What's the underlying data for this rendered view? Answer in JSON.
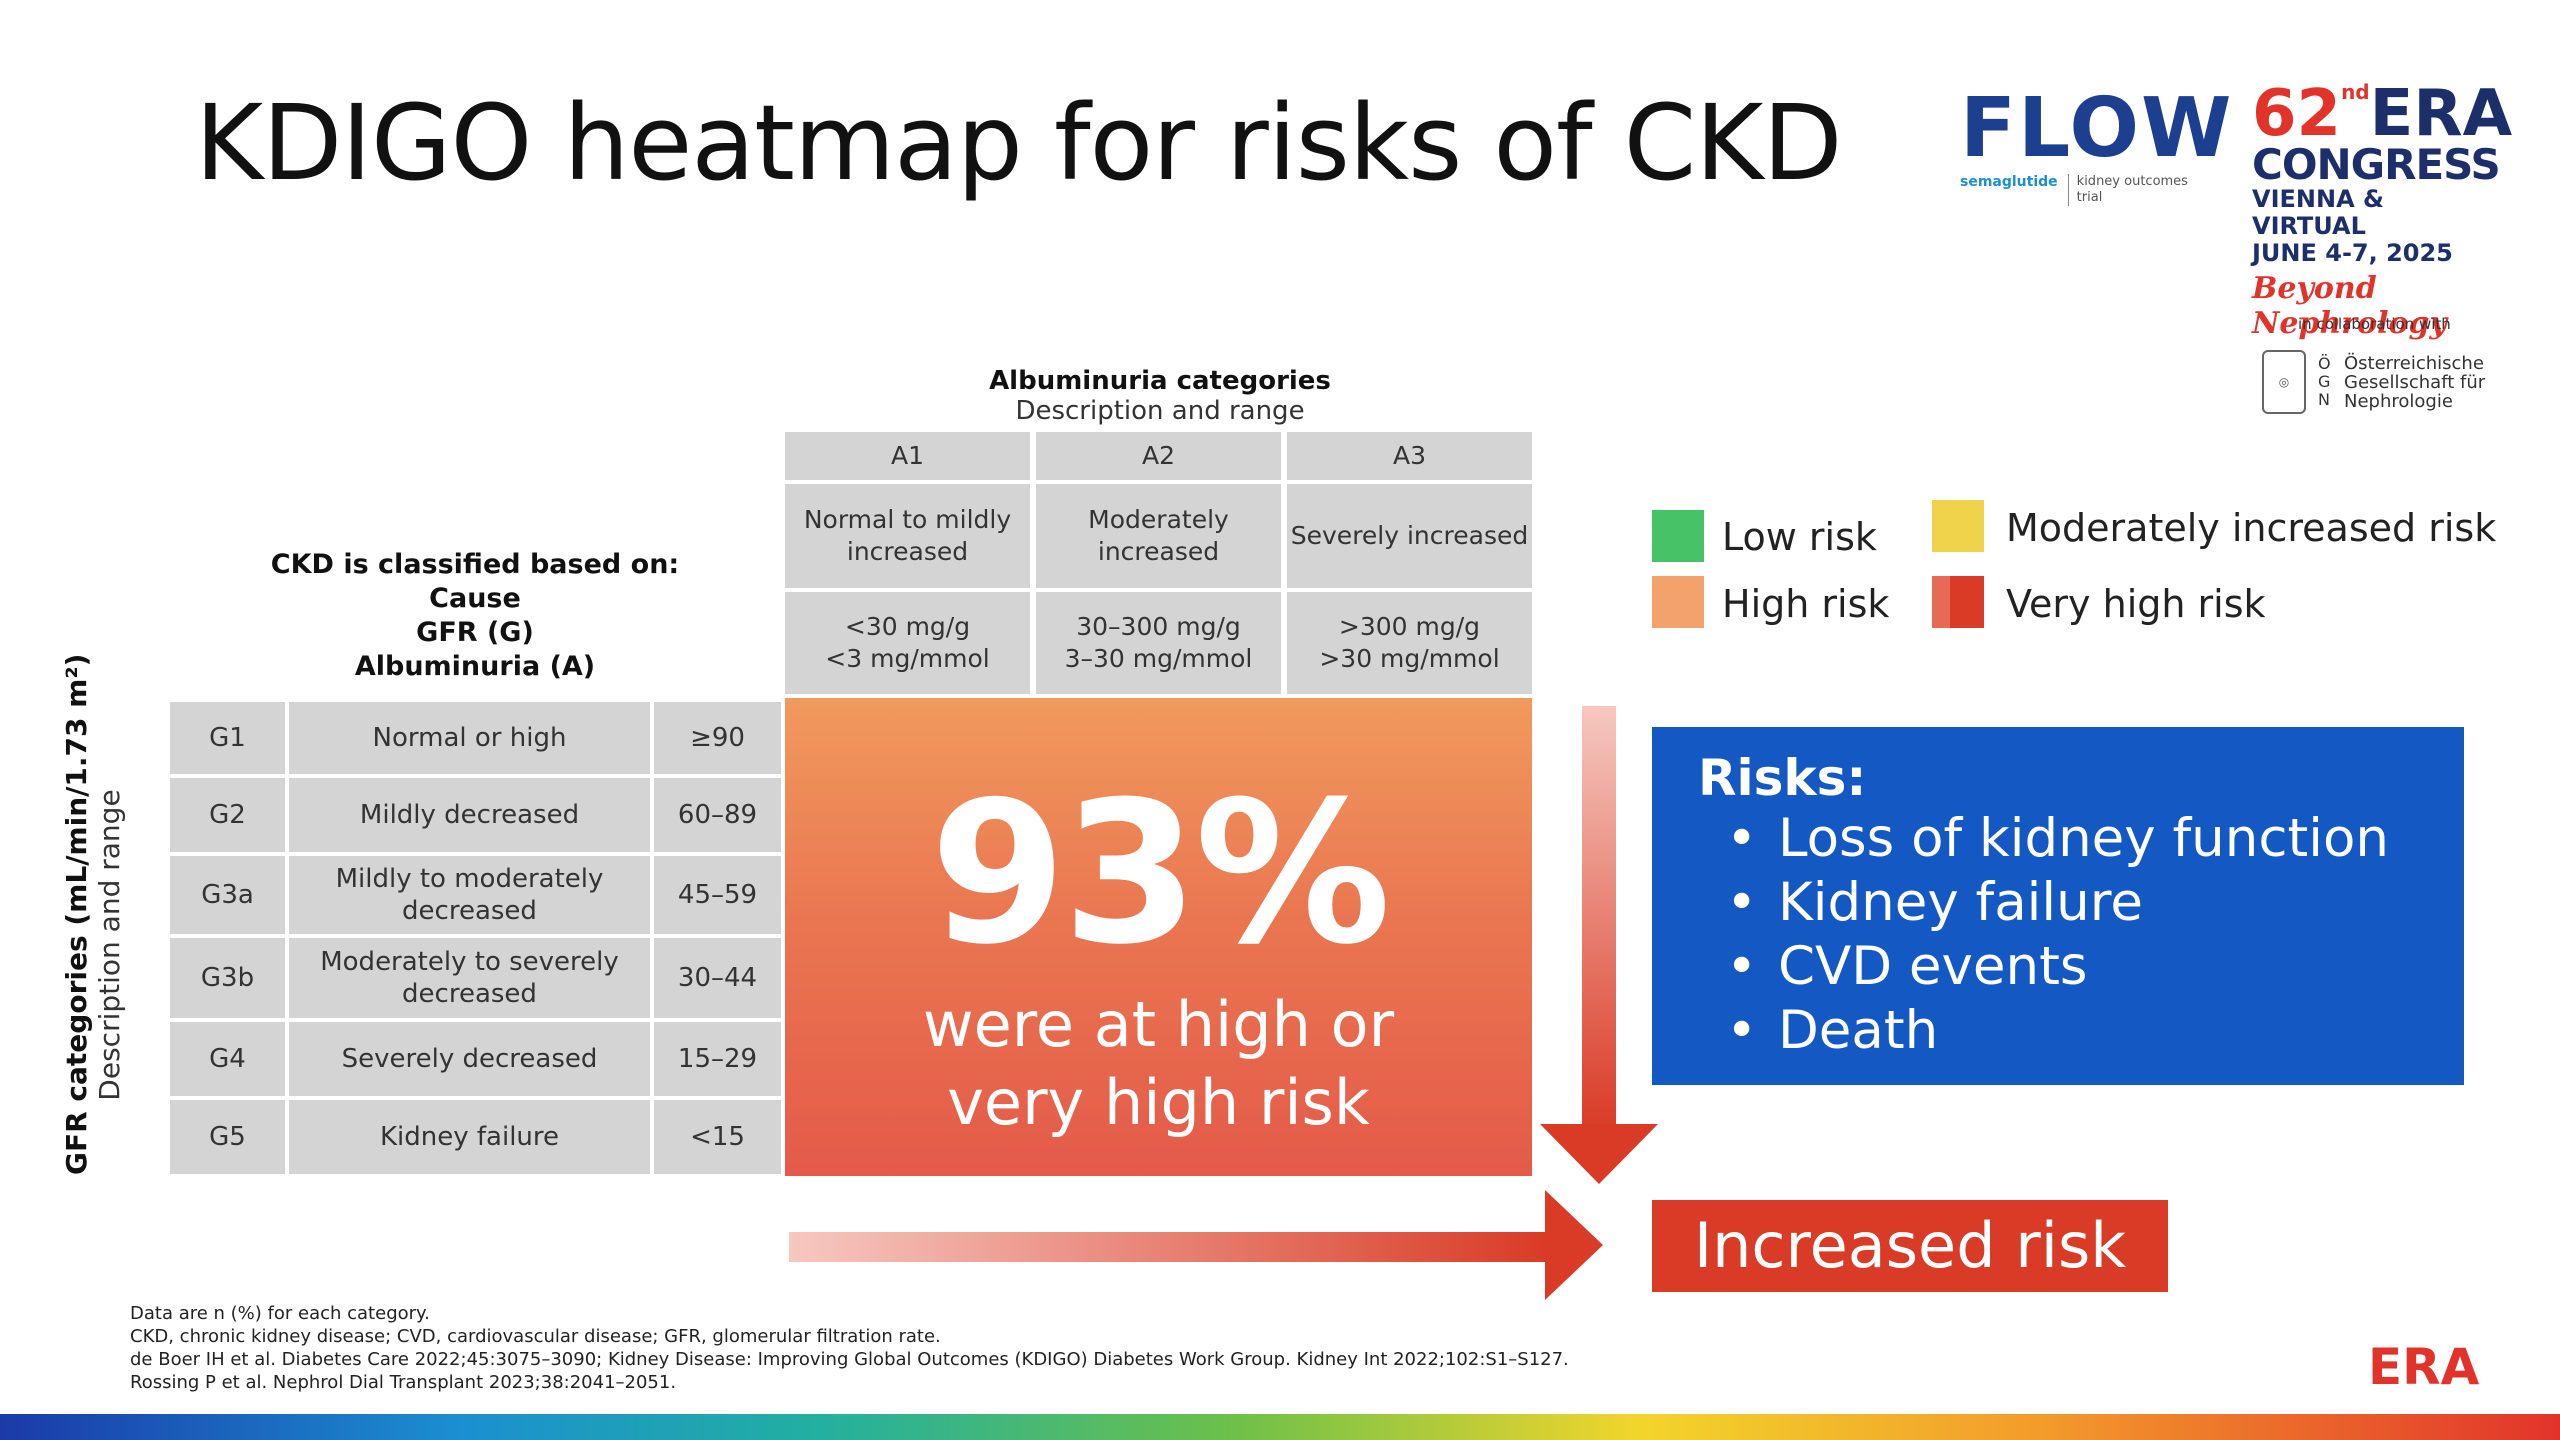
{
  "title": "KDIGO heatmap for risks of CKD",
  "logos": {
    "flow_word": "FLOW",
    "flow_sub1": "semaglutide",
    "flow_sub2": "kidney outcomes trial",
    "era_number": "62",
    "era_sup": "nd",
    "era_word": "ERA",
    "era_congress": "CONGRESS",
    "era_city": "VIENNA & VIRTUAL",
    "era_dates": "JUNE 4-7, 2025",
    "era_tagline": "Beyond Nephrology",
    "collab": "in collaboration with",
    "ogn_letters": "Ö G N",
    "ogn_text": "Österreichische Gesellschaft für Nephrologie",
    "era_small": "ERA"
  },
  "albuminuria": {
    "title": "Albuminuria categories",
    "subtitle": "Description and range",
    "cols": [
      {
        "code": "A1",
        "desc": "Normal to mildly increased",
        "range1": "<30 mg/g",
        "range2": "<3 mg/mmol"
      },
      {
        "code": "A2",
        "desc": "Moderately increased",
        "range1": "30–300 mg/g",
        "range2": "3–30 mg/mmol"
      },
      {
        "code": "A3",
        "desc": "Severely increased",
        "range1": ">300 mg/g",
        "range2": ">30 mg/mmol"
      }
    ]
  },
  "classified": {
    "l1": "CKD is classified based on:",
    "l2": "Cause",
    "l3": "GFR (G)",
    "l4": "Albuminuria (A)"
  },
  "gfr": {
    "label": "GFR categories (mL/min/1.73 m²)",
    "sublabel": "Description and range",
    "rows": [
      {
        "code": "G1",
        "desc": "Normal or high",
        "range": "≥90"
      },
      {
        "code": "G2",
        "desc": "Mildly decreased",
        "range": "60–89"
      },
      {
        "code": "G3a",
        "desc": "Mildly to moderately decreased",
        "range": "45–59"
      },
      {
        "code": "G3b",
        "desc": "Moderately to severely decreased",
        "range": "30–44"
      },
      {
        "code": "G4",
        "desc": "Severely decreased",
        "range": "15–29"
      },
      {
        "code": "G5",
        "desc": "Kidney failure",
        "range": "<15"
      }
    ]
  },
  "heatmap": {
    "percent": "93%",
    "line1": "were at high or",
    "line2": "very high risk"
  },
  "legend": {
    "low": {
      "label": "Low risk",
      "color": "#47c266"
    },
    "moderate": {
      "label": "Moderately increased risk",
      "color": "#f0d34a"
    },
    "high": {
      "label": "High risk",
      "color": "#f2a26a"
    },
    "very_high": {
      "label": "Very high risk",
      "color": "#d93b26"
    }
  },
  "risks": {
    "heading": "Risks:",
    "items": [
      "Loss of kidney function",
      "Kidney failure",
      "CVD events",
      "Death"
    ]
  },
  "increased_risk": "Increased risk",
  "footnotes": [
    "Data are n (%) for each category.",
    "CKD, chronic kidney disease; CVD, cardiovascular disease; GFR, glomerular filtration rate.",
    "de Boer IH et al. Diabetes Care 2022;45:3075–3090; Kidney Disease: Improving Global Outcomes (KDIGO) Diabetes Work Group. Kidney Int 2022;102:S1–S127.",
    "Rossing P et al. Nephrol Dial Transplant 2023;38:2041–2051."
  ]
}
